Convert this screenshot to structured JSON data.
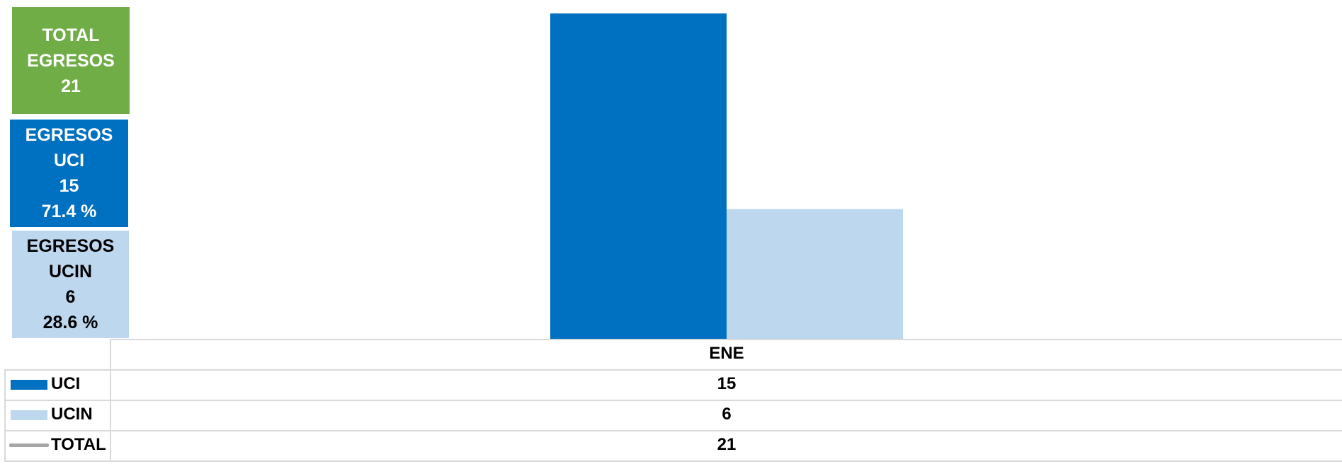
{
  "summary": {
    "total": {
      "line1": "TOTAL",
      "line2": "EGRESOS",
      "value": "21",
      "color": "#70ad47"
    },
    "uci": {
      "line1": "EGRESOS",
      "line2": "UCI",
      "value": "15",
      "percent": "71.4 %",
      "color": "#0070c0"
    },
    "ucin": {
      "line1": "EGRESOS",
      "line2": "UCIN",
      "value": "6",
      "percent": "28.6 %",
      "color": "#bdd7ee"
    }
  },
  "chart_data": {
    "type": "bar",
    "categories": [
      "ENE"
    ],
    "series": [
      {
        "name": "UCI",
        "values": [
          15
        ],
        "color": "#0070c0"
      },
      {
        "name": "UCIN",
        "values": [
          6
        ],
        "color": "#bdd7ee"
      }
    ],
    "ylim": [
      0,
      15
    ],
    "grid": false,
    "legend": "data-table",
    "data_table": {
      "header": "ENE",
      "rows": [
        {
          "label": "UCI",
          "value": "15",
          "key": "bar",
          "color": "#0070c0"
        },
        {
          "label": "UCIN",
          "value": "6",
          "key": "bar",
          "color": "#bdd7ee"
        },
        {
          "label": "TOTAL",
          "value": "21",
          "key": "line",
          "color": "#a6a6a6"
        }
      ]
    }
  }
}
